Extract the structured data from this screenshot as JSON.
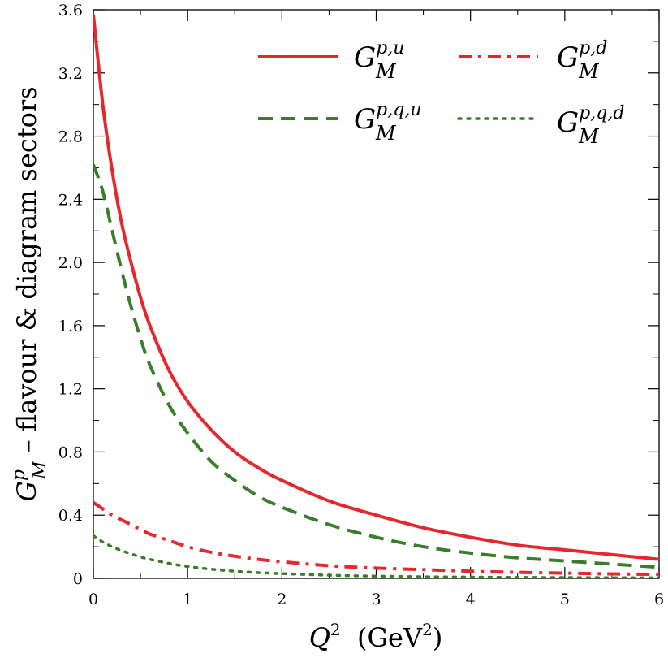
{
  "chart_data": {
    "type": "line",
    "xlabel": "Q² (GeV²)",
    "ylabel": "G_M^p – flavour & diagram sectors",
    "xlim": [
      0,
      6
    ],
    "ylim": [
      0,
      3.6
    ],
    "x_ticks": [
      "0",
      "1",
      "2",
      "3",
      "4",
      "5",
      "6"
    ],
    "y_ticks": [
      "0",
      "0.4",
      "0.8",
      "1.2",
      "1.6",
      "2.0",
      "2.4",
      "2.8",
      "3.2",
      "3.6"
    ],
    "grid": false,
    "legend_position": "top-right",
    "x": [
      0,
      0.1,
      0.2,
      0.3,
      0.4,
      0.5,
      0.6,
      0.8,
      1.0,
      1.25,
      1.5,
      1.75,
      2.0,
      2.5,
      3.0,
      3.5,
      4.0,
      4.5,
      5.0,
      5.5,
      6.0
    ],
    "series": [
      {
        "name": "G_M^{p,u}",
        "label": {
          "base": "G",
          "sup": "p,u",
          "sub": "M"
        },
        "color": "#e8262d",
        "dash": "solid",
        "values": [
          3.57,
          3.0,
          2.58,
          2.25,
          2.0,
          1.78,
          1.6,
          1.32,
          1.12,
          0.94,
          0.8,
          0.7,
          0.62,
          0.49,
          0.4,
          0.32,
          0.26,
          0.21,
          0.18,
          0.15,
          0.12
        ]
      },
      {
        "name": "G_M^{p,d}",
        "label": {
          "base": "G",
          "sup": "p,d",
          "sub": "M"
        },
        "color": "#e8262d",
        "dash": "dashdot",
        "values": [
          0.48,
          0.44,
          0.4,
          0.37,
          0.34,
          0.31,
          0.28,
          0.24,
          0.2,
          0.165,
          0.14,
          0.12,
          0.105,
          0.08,
          0.065,
          0.055,
          0.045,
          0.038,
          0.033,
          0.028,
          0.025
        ]
      },
      {
        "name": "G_M^{p,q,u}",
        "label": {
          "base": "G",
          "sup": "p,q,u",
          "sub": "M"
        },
        "color": "#3a7d2c",
        "dash": "dashed",
        "values": [
          2.62,
          2.45,
          2.2,
          1.95,
          1.72,
          1.52,
          1.35,
          1.1,
          0.92,
          0.74,
          0.62,
          0.52,
          0.45,
          0.34,
          0.26,
          0.2,
          0.16,
          0.13,
          0.11,
          0.09,
          0.07
        ]
      },
      {
        "name": "G_M^{p,q,d}",
        "label": {
          "base": "G",
          "sup": "p,q,d",
          "sub": "M"
        },
        "color": "#3a7d2c",
        "dash": "dotted",
        "values": [
          0.27,
          0.23,
          0.2,
          0.175,
          0.155,
          0.135,
          0.12,
          0.095,
          0.075,
          0.058,
          0.045,
          0.036,
          0.03,
          0.02,
          0.014,
          0.01,
          0.008,
          0.006,
          0.005,
          0.004,
          0.003
        ]
      }
    ]
  }
}
